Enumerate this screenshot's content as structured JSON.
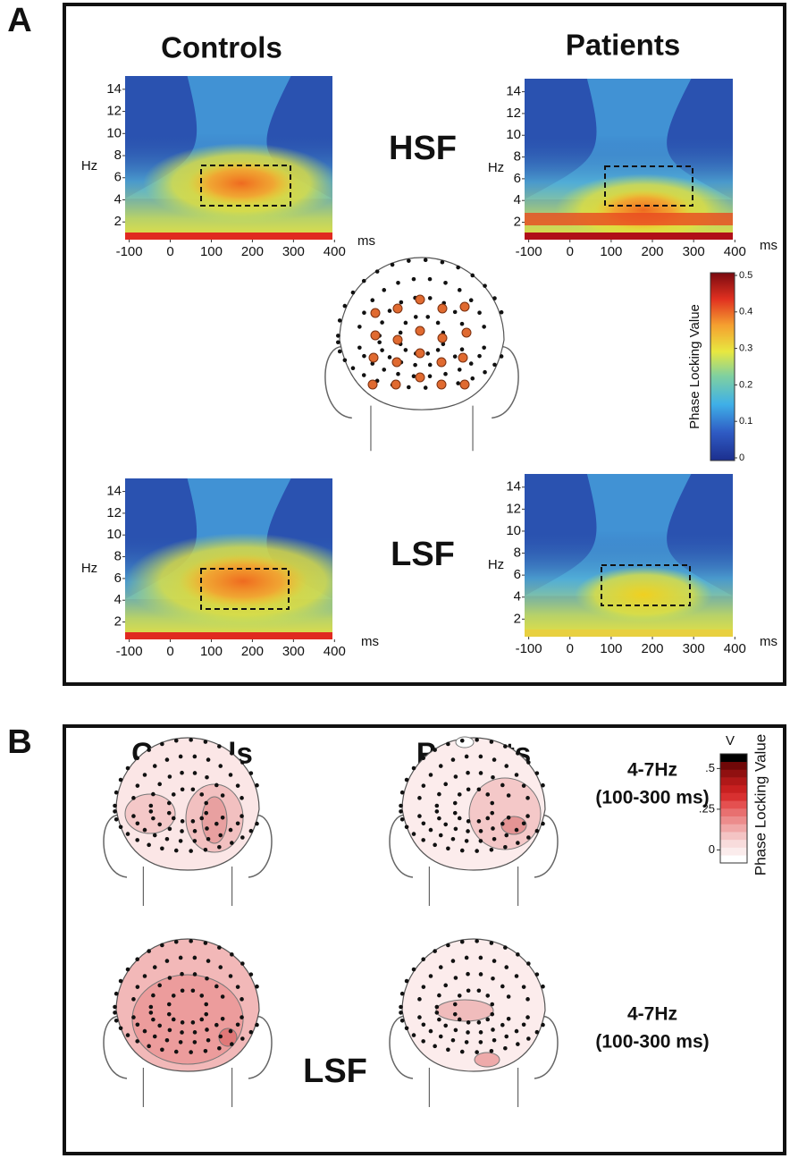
{
  "panel_a": {
    "label": "A",
    "columns": [
      "Controls",
      "Patients"
    ],
    "rows": [
      "HSF",
      "LSF"
    ],
    "hz_label": "Hz",
    "ms_label": "ms",
    "xticks": [
      -100,
      0,
      100,
      200,
      300,
      400
    ],
    "xlim": [
      -110,
      395
    ],
    "yticks": [
      2,
      4,
      6,
      8,
      10,
      12,
      14
    ],
    "ylim": [
      0.4,
      15.2
    ],
    "colorbar": {
      "label": "Phase Locking Value",
      "ticks": [
        0,
        0.1,
        0.2,
        0.3,
        0.4,
        0.5
      ],
      "lim": [
        0,
        0.5
      ]
    }
  },
  "panel_b": {
    "label": "B",
    "columns": [
      "Controls",
      "Patients"
    ],
    "rows": [
      {
        "band": "4-7Hz",
        "window": "(100-300 ms)"
      },
      {
        "name": "LSF",
        "band": "4-7Hz",
        "window": "(100-300 ms)"
      }
    ],
    "colorbar": {
      "label": "Phase Locking Value",
      "unit": "V",
      "ticks": [
        {
          "value": 0.5,
          "label": ".5"
        },
        {
          "value": 0.25,
          "label": ".25"
        },
        0
      ],
      "lim": [
        -0.08,
        0.59
      ]
    }
  }
}
